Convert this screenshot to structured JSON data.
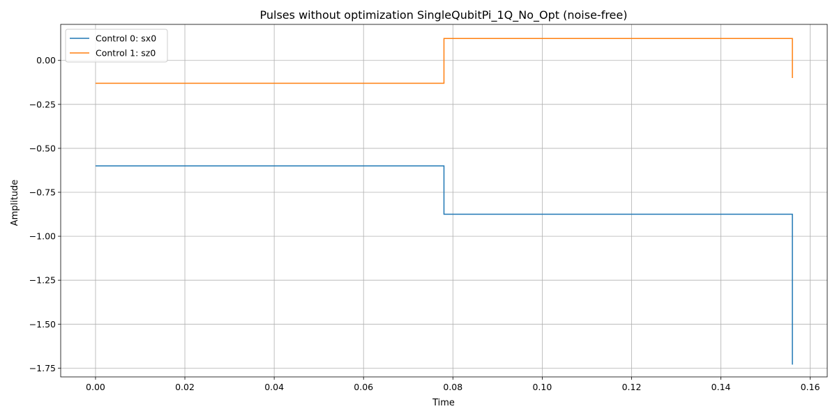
{
  "chart_data": {
    "type": "line",
    "step": "post",
    "title": "Pulses without optimization SingleQubitPi_1Q_No_Opt (noise-free)",
    "xlabel": "Time",
    "ylabel": "Amplitude",
    "xlim": [
      -0.0078,
      0.1638
    ],
    "ylim": [
      -1.8,
      0.205
    ],
    "x_ticks": [
      0.0,
      0.02,
      0.04,
      0.06,
      0.08,
      0.1,
      0.12,
      0.14,
      0.16
    ],
    "x_tick_labels": [
      "0.00",
      "0.02",
      "0.04",
      "0.06",
      "0.08",
      "0.10",
      "0.12",
      "0.14",
      "0.16"
    ],
    "y_ticks": [
      0.0,
      -0.25,
      -0.5,
      -0.75,
      -1.0,
      -1.25,
      -1.5,
      -1.75
    ],
    "y_tick_labels": [
      "0.00",
      "−0.25",
      "−0.50",
      "−0.75",
      "−1.00",
      "−1.25",
      "−1.50",
      "−1.75"
    ],
    "grid": true,
    "legend_position": "top-left",
    "series": [
      {
        "name": "Control 0: sx0",
        "color": "#1f77b4",
        "x": [
          0.0,
          0.078,
          0.156,
          0.156
        ],
        "y": [
          -0.6,
          -0.875,
          -0.875,
          -1.73
        ]
      },
      {
        "name": "Control 1: sz0",
        "color": "#ff7f0e",
        "x": [
          0.0,
          0.078,
          0.156,
          0.156
        ],
        "y": [
          -0.13,
          0.125,
          0.125,
          -0.1
        ]
      }
    ]
  }
}
